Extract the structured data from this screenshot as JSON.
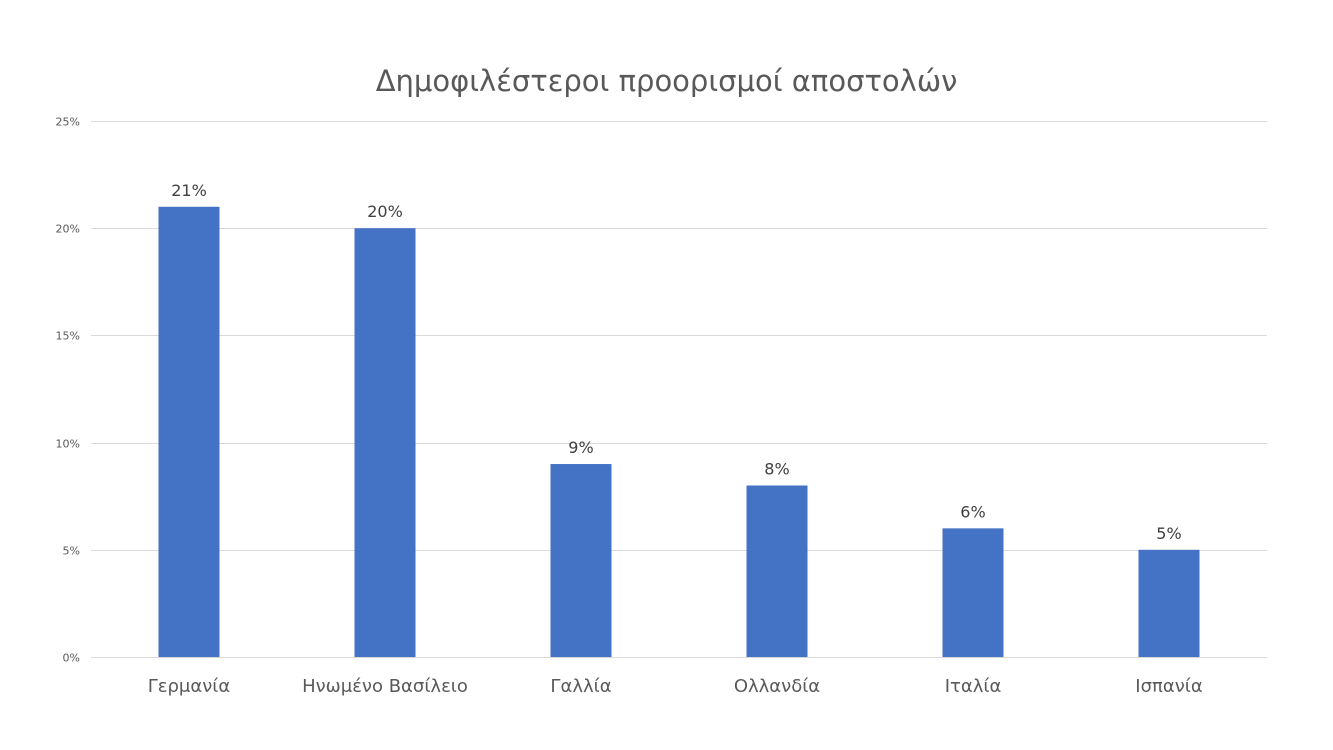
{
  "chart_data": {
    "type": "bar",
    "title": "Δημοφιλέστεροι προορισμοί αποστολών",
    "categories": [
      "Γερμανία",
      "Ηνωμένο Βασίλειο",
      "Γαλλία",
      "Ολλανδία",
      "Ιταλία",
      "Ισπανία"
    ],
    "series": [
      {
        "values": [
          21,
          20,
          9,
          8,
          6,
          5
        ],
        "data_labels": [
          "21%",
          "20%",
          "9%",
          "8%",
          "6%",
          "5%"
        ],
        "color": "#4472c4"
      }
    ],
    "ylim": [
      0,
      25
    ],
    "y_ticks": [
      0,
      5,
      10,
      15,
      20,
      25
    ],
    "y_tick_labels": [
      "0%",
      "5%",
      "10%",
      "15%",
      "20%",
      "25%"
    ],
    "grid": true,
    "legend": "none"
  }
}
